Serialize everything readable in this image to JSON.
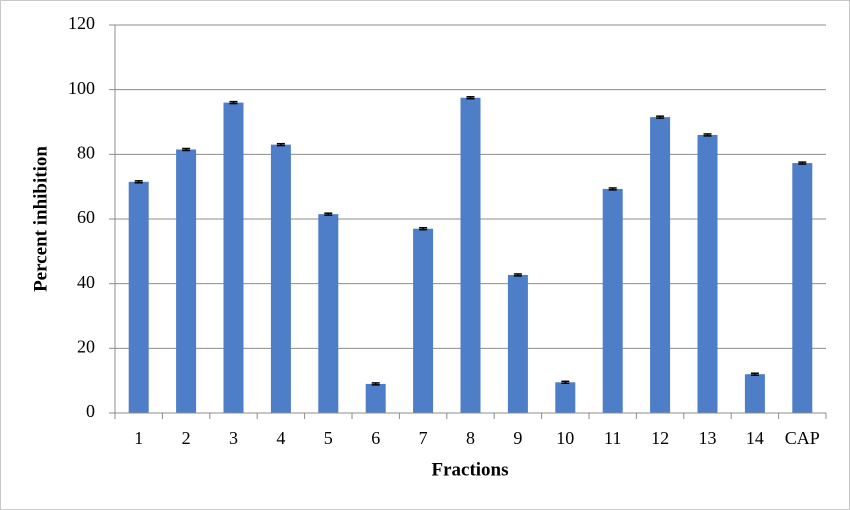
{
  "chart_data": {
    "type": "bar",
    "x_label": "Fractions",
    "y_label": "Percent inhibition",
    "categories": [
      "1",
      "2",
      "3",
      "4",
      "5",
      "6",
      "7",
      "8",
      "9",
      "10",
      "11",
      "12",
      "13",
      "14",
      "CAP"
    ],
    "values": [
      71.5,
      81.5,
      96,
      83,
      61.5,
      9,
      57,
      97.5,
      42.7,
      9.5,
      69.3,
      91.5,
      86,
      12,
      77.3
    ],
    "errors": [
      0.3,
      0.3,
      0.3,
      0.3,
      0.3,
      0.3,
      0.3,
      0.3,
      0.3,
      0.3,
      0.3,
      0.3,
      0.3,
      0.3,
      0.3
    ],
    "color": "#4f7ec9",
    "ylim": [
      0,
      120
    ],
    "yticks": [
      0,
      20,
      40,
      60,
      80,
      100,
      120
    ],
    "grid": true
  }
}
